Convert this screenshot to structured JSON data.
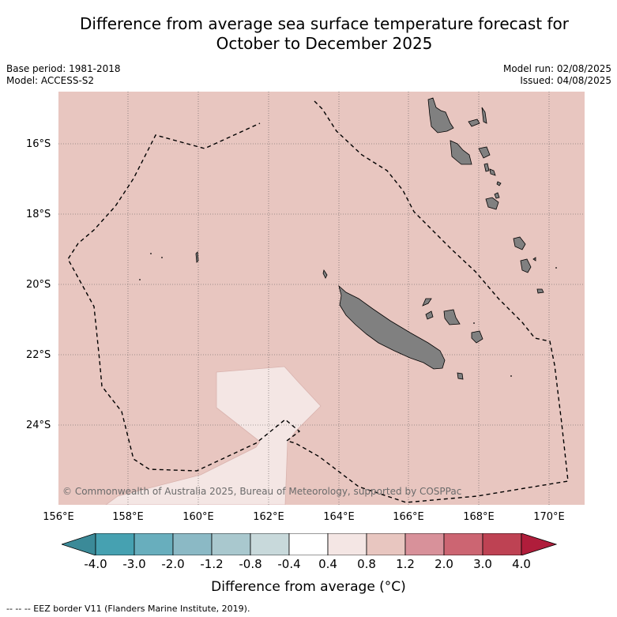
{
  "title_line1": "Difference from average sea surface temperature forecast for",
  "title_line2": "October to December 2025",
  "base_period": "Base period: 1981-2018",
  "model": "Model: ACCESS-S2",
  "model_run": "Model run: 02/08/2025",
  "issued": "Issued: 04/08/2025",
  "copyright": "© Commonwealth of Australia 2025, Bureau of Meteorology, supported by COSPPac",
  "lat_labels": [
    "16°S",
    "18°S",
    "20°S",
    "22°S",
    "24°S"
  ],
  "lon_labels": [
    "156°E",
    "158°E",
    "160°E",
    "162°E",
    "164°E",
    "166°E",
    "168°E",
    "170°E"
  ],
  "colorbar": {
    "title": "Difference from average (°C)",
    "ticks": [
      "-4.0",
      "-3.0",
      "-2.0",
      "-1.2",
      "-0.8",
      "-0.4",
      "0.4",
      "0.8",
      "1.2",
      "2.0",
      "3.0",
      "4.0"
    ],
    "colors": [
      "#3b8a98",
      "#46a1b1",
      "#68aebd",
      "#8bb9c5",
      "#a9c8ce",
      "#c8d9db",
      "#ffffff",
      "#f4e6e4",
      "#e8c6c0",
      "#d8919a",
      "#cc6572",
      "#be4253",
      "#b01d3b"
    ]
  },
  "footer": "--  --  -- EEZ border V11 (Flanders Marine Institute, 2019).",
  "map": {
    "background_class_color": "#e8c6c0",
    "cooler_patch_color": "#f4e6e4",
    "land_color": "#808080"
  }
}
